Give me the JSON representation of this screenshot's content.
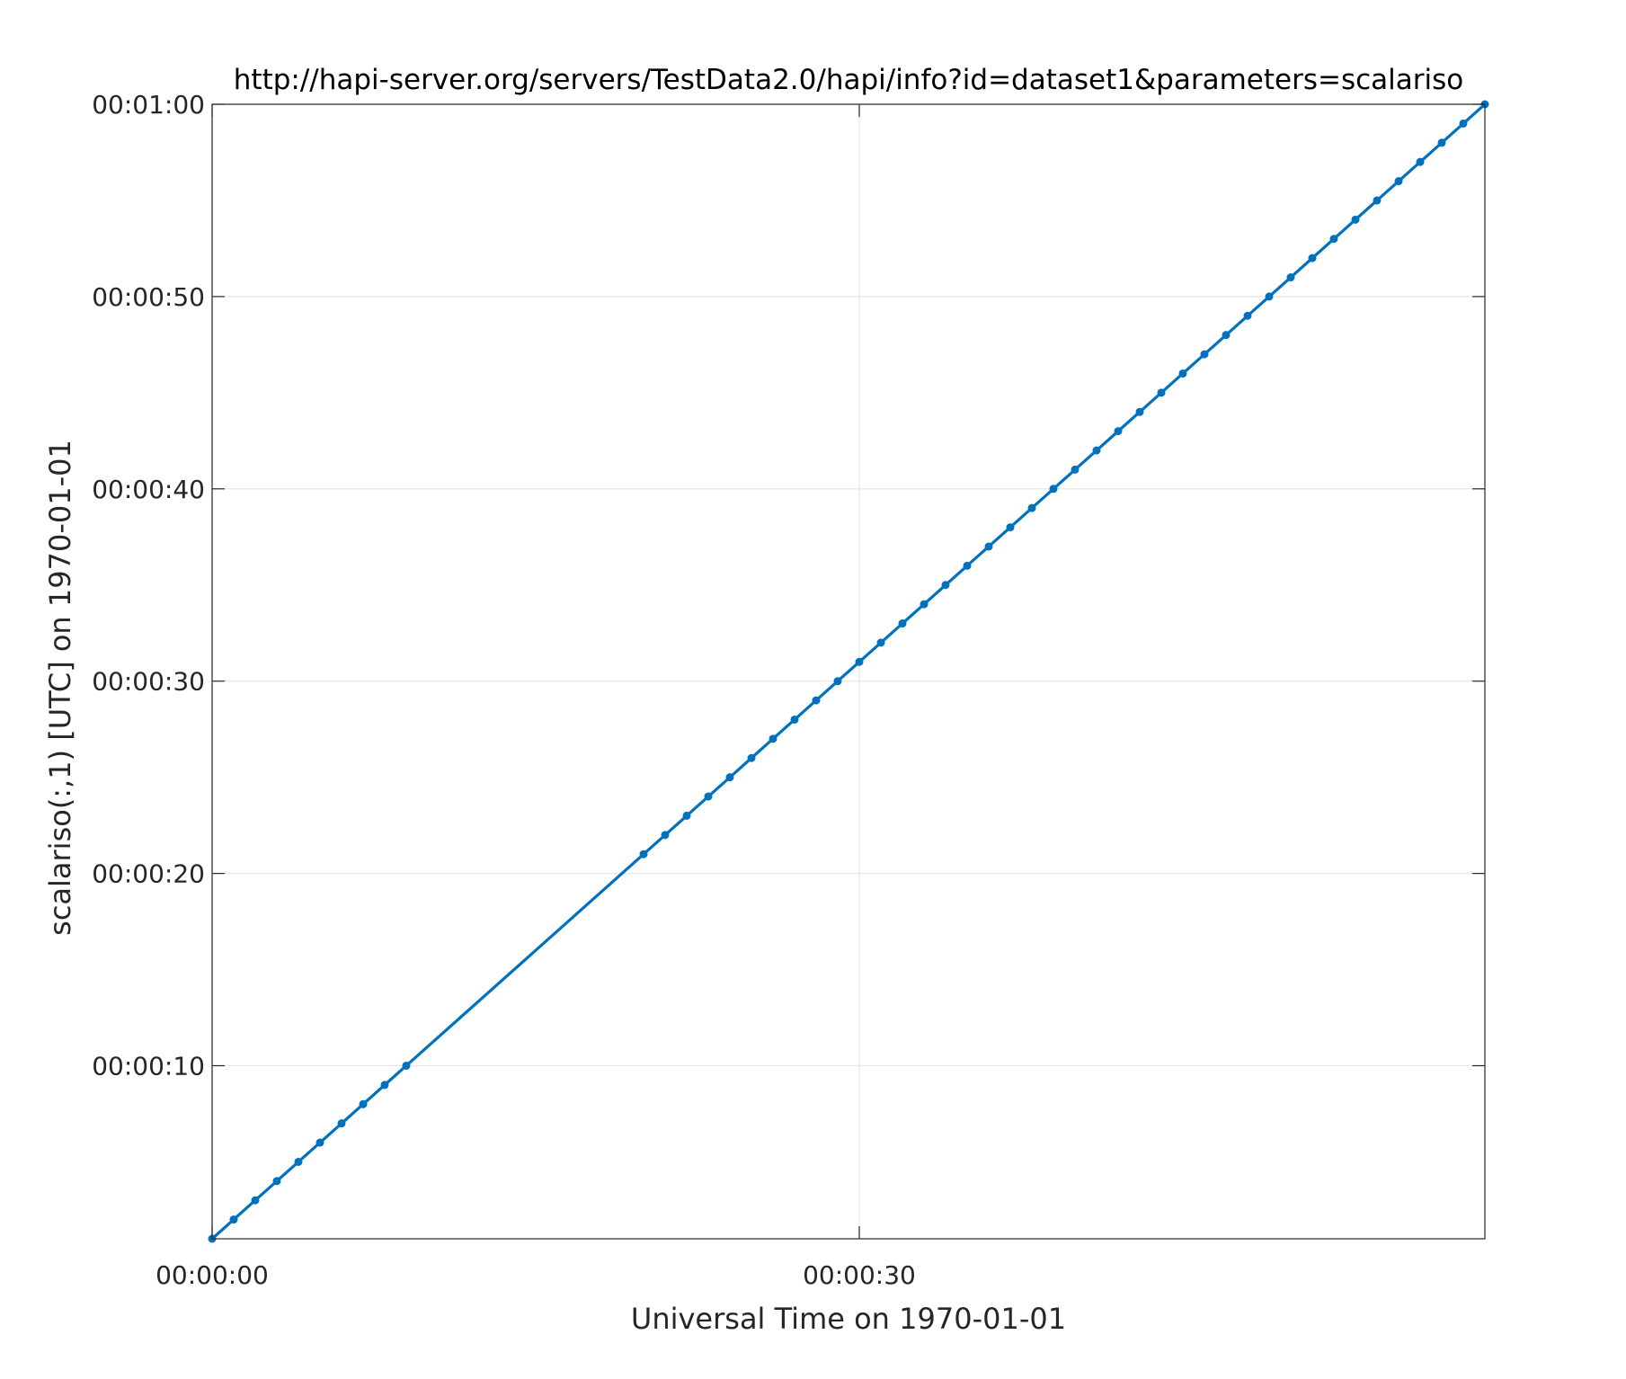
{
  "chart_data": {
    "type": "line",
    "title": "http://hapi-server.org/servers/TestData2.0/hapi/info?id=dataset1&parameters=scalariso",
    "xlabel": "Universal Time on 1970-01-01",
    "ylabel": "scalariso(:,1) [UTC] on 1970-01-01",
    "x_unit": "seconds",
    "xlim": [
      0,
      59
    ],
    "ylim": [
      1,
      60
    ],
    "x_ticks": [
      {
        "value": 0,
        "label": "00:00:00"
      },
      {
        "value": 30,
        "label": "00:00:30"
      }
    ],
    "y_ticks": [
      {
        "value": 10,
        "label": "00:00:10"
      },
      {
        "value": 20,
        "label": "00:00:20"
      },
      {
        "value": 30,
        "label": "00:00:30"
      },
      {
        "value": 40,
        "label": "00:00:40"
      },
      {
        "value": 50,
        "label": "00:00:50"
      },
      {
        "value": 60,
        "label": "00:01:00"
      }
    ],
    "grid": true,
    "series": [
      {
        "color": "#0072BD",
        "x": [
          0,
          1,
          2,
          3,
          4,
          5,
          6,
          7,
          8,
          9,
          20,
          21,
          22,
          23,
          24,
          25,
          26,
          27,
          28,
          29,
          30,
          31,
          32,
          33,
          34,
          35,
          36,
          37,
          38,
          39,
          40,
          41,
          42,
          43,
          44,
          45,
          46,
          47,
          48,
          49,
          50,
          51,
          52,
          53,
          54,
          55,
          56,
          57,
          58,
          59
        ],
        "y": [
          1,
          2,
          3,
          4,
          5,
          6,
          7,
          8,
          9,
          10,
          21,
          22,
          23,
          24,
          25,
          26,
          27,
          28,
          29,
          30,
          31,
          32,
          33,
          34,
          35,
          36,
          37,
          38,
          39,
          40,
          41,
          42,
          43,
          44,
          45,
          46,
          47,
          48,
          49,
          50,
          51,
          52,
          53,
          54,
          55,
          56,
          57,
          58,
          59,
          60
        ]
      }
    ]
  }
}
